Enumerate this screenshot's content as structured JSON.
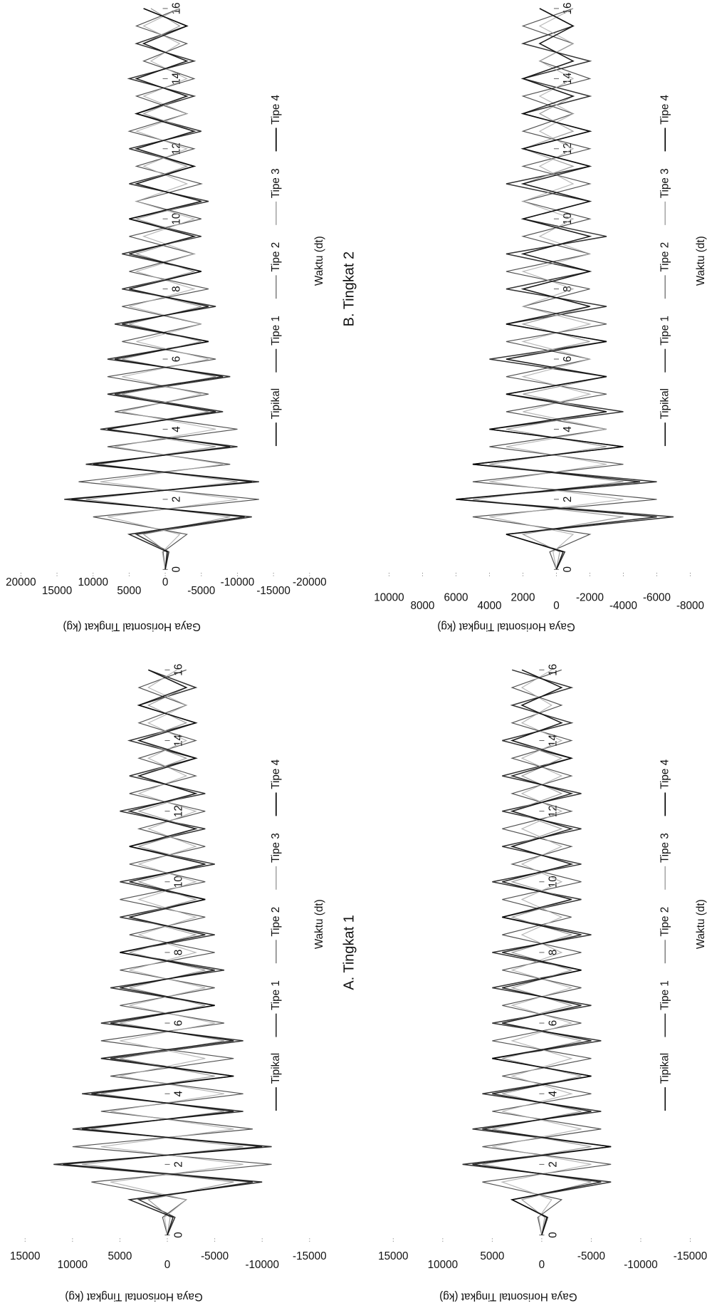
{
  "chart_data": [
    {
      "type": "line",
      "title": "A. Tingkat 1",
      "x_label": "Waktu (dt)",
      "y_label": "Gaya Horisontal Tingkat (kg)",
      "x": [
        0,
        0.5,
        1,
        1.5,
        2,
        2.5,
        3,
        3.5,
        4,
        4.5,
        5,
        5.5,
        6,
        6.5,
        7,
        7.5,
        8,
        8.5,
        9,
        9.5,
        10,
        10.5,
        11,
        11.5,
        12,
        12.5,
        13,
        13.5,
        14,
        14.5,
        15,
        15.5,
        16
      ],
      "xlim": [
        0,
        16
      ],
      "xticks": [
        0,
        2,
        4,
        6,
        8,
        10,
        12,
        14,
        16
      ],
      "ylim": [
        -15000,
        15000
      ],
      "yticks": [
        15000,
        10000,
        5000,
        0,
        -5000,
        -10000,
        -15000
      ],
      "series": [
        {
          "name": "Tipikal",
          "color": "#111111",
          "values": [
            0,
            -800,
            3000,
            -9000,
            12000,
            -11000,
            10000,
            -8000,
            9000,
            -7000,
            6000,
            -8000,
            7000,
            -5000,
            6000,
            -6000,
            5000,
            -5000,
            5000,
            -4000,
            5000,
            -5000,
            4000,
            -4000,
            5000,
            -4000,
            4000,
            -3000,
            4000,
            -3000,
            3000,
            -3000,
            2000
          ]
        },
        {
          "name": "Tipe 1",
          "color": "#333333",
          "values": [
            0,
            500,
            -2000,
            8000,
            -11000,
            10000,
            -9000,
            7000,
            -8000,
            6000,
            -7000,
            7000,
            -6000,
            5000,
            -5000,
            5000,
            -5000,
            4000,
            -4000,
            5000,
            -4000,
            4000,
            -4000,
            3000,
            -4000,
            4000,
            -3000,
            3000,
            -3000,
            3000,
            -2000,
            3000,
            -2000
          ]
        },
        {
          "name": "Tipe 2",
          "color": "#888888",
          "values": [
            0,
            -300,
            2000,
            -7000,
            9000,
            -8000,
            8000,
            -6000,
            7000,
            -5000,
            5000,
            -6000,
            5000,
            -4000,
            4000,
            -4000,
            4000,
            -3000,
            4000,
            -3000,
            3000,
            -4000,
            3000,
            -3000,
            3000,
            -3000,
            3000,
            -2000,
            3000,
            -2000,
            2000,
            -2000,
            2000
          ]
        },
        {
          "name": "Tipe 3",
          "color": "#aaaaaa",
          "values": [
            0,
            300,
            -2000,
            6000,
            -8000,
            7000,
            -7000,
            6000,
            -6000,
            5000,
            -4000,
            5000,
            -5000,
            4000,
            -4000,
            4000,
            -3000,
            3000,
            -3000,
            3000,
            -3000,
            3000,
            -3000,
            2000,
            -3000,
            3000,
            -2000,
            2000,
            -2000,
            2000,
            -2000,
            2000,
            -1000
          ]
        },
        {
          "name": "Tipe 4",
          "color": "#000000",
          "values": [
            0,
            -600,
            4000,
            -10000,
            11000,
            -10000,
            9000,
            -7000,
            8000,
            -7000,
            7000,
            -7000,
            6000,
            -5000,
            5000,
            -5000,
            5000,
            -4000,
            4000,
            -4000,
            4000,
            -4000,
            4000,
            -3000,
            4000,
            -3000,
            3000,
            -3000,
            3000,
            -3000,
            3000,
            -2000,
            2000
          ]
        }
      ]
    },
    {
      "type": "line",
      "title": "B. Tingkat 2",
      "x_label": "Waktu (dt)",
      "y_label": "Gaya Horisontal Tingkat (kg)",
      "x": [
        0,
        0.5,
        1,
        1.5,
        2,
        2.5,
        3,
        3.5,
        4,
        4.5,
        5,
        5.5,
        6,
        6.5,
        7,
        7.5,
        8,
        8.5,
        9,
        9.5,
        10,
        10.5,
        11,
        11.5,
        12,
        12.5,
        13,
        13.5,
        14,
        14.5,
        15,
        15.5,
        16
      ],
      "xlim": [
        0,
        16
      ],
      "xticks": [
        0,
        2,
        4,
        6,
        8,
        10,
        12,
        14,
        16
      ],
      "ylim": [
        -20000,
        20000
      ],
      "yticks": [
        20000,
        15000,
        10000,
        5000,
        0,
        -5000,
        -10000,
        -15000,
        -20000
      ],
      "series": [
        {
          "name": "Tipikal",
          "color": "#111111",
          "values": [
            0,
            -500,
            4000,
            -12000,
            14000,
            -13000,
            11000,
            -10000,
            9000,
            -8000,
            7000,
            -9000,
            8000,
            -6000,
            7000,
            -7000,
            6000,
            -5000,
            6000,
            -5000,
            5000,
            -6000,
            5000,
            -4000,
            5000,
            -5000,
            4000,
            -4000,
            5000,
            -4000,
            4000,
            -3000,
            3000
          ]
        },
        {
          "name": "Tipe 1",
          "color": "#333333",
          "values": [
            0,
            300,
            -3000,
            10000,
            -13000,
            12000,
            -9000,
            8000,
            -10000,
            7000,
            -6000,
            8000,
            -7000,
            6000,
            -5000,
            6000,
            -6000,
            5000,
            -4000,
            5000,
            -5000,
            4000,
            -5000,
            4000,
            -4000,
            5000,
            -3000,
            4000,
            -4000,
            3000,
            -3000,
            4000,
            -2000
          ]
        },
        {
          "name": "Tipe 2",
          "color": "#888888",
          "values": [
            0,
            -200,
            3000,
            -9000,
            11000,
            -10000,
            9000,
            -7000,
            8000,
            -6000,
            6000,
            -7000,
            6000,
            -5000,
            5000,
            -5000,
            5000,
            -4000,
            4000,
            -4000,
            4000,
            -5000,
            4000,
            -3000,
            4000,
            -4000,
            3000,
            -3000,
            4000,
            -3000,
            3000,
            -2000,
            2000
          ]
        },
        {
          "name": "Tipe 3",
          "color": "#aaaaaa",
          "values": [
            0,
            400,
            -2000,
            8000,
            -10000,
            9000,
            -8000,
            7000,
            -7000,
            6000,
            -5000,
            6000,
            -6000,
            4000,
            -5000,
            5000,
            -4000,
            4000,
            -4000,
            3000,
            -4000,
            4000,
            -3000,
            3000,
            -3000,
            4000,
            -3000,
            3000,
            -3000,
            2000,
            -2000,
            3000,
            -2000
          ]
        },
        {
          "name": "Tipe 4",
          "color": "#000000",
          "values": [
            0,
            -300,
            5000,
            -11000,
            13000,
            -12000,
            10000,
            -9000,
            8000,
            -7000,
            8000,
            -8000,
            7000,
            -6000,
            6000,
            -6000,
            5000,
            -5000,
            5000,
            -4000,
            5000,
            -5000,
            4000,
            -4000,
            4000,
            -4000,
            4000,
            -3000,
            4000,
            -3000,
            3000,
            -3000,
            3000
          ]
        }
      ]
    },
    {
      "type": "line",
      "x_label": "Waktu (dt)",
      "y_label": "Gaya Horisontal Tingkat (kg)",
      "x": [
        0,
        0.5,
        1,
        1.5,
        2,
        2.5,
        3,
        3.5,
        4,
        4.5,
        5,
        5.5,
        6,
        6.5,
        7,
        7.5,
        8,
        8.5,
        9,
        9.5,
        10,
        10.5,
        11,
        11.5,
        12,
        12.5,
        13,
        13.5,
        14,
        14.5,
        15,
        15.5,
        16
      ],
      "xlim": [
        0,
        16
      ],
      "xticks": [
        0,
        2,
        4,
        6,
        8,
        10,
        12,
        14,
        16
      ],
      "ylim": [
        -8000,
        10000
      ],
      "yticks": [
        10000,
        8000,
        6000,
        4000,
        2000,
        0,
        -2000,
        -4000,
        -6000,
        -8000
      ],
      "series": [
        {
          "name": "Tipikal",
          "color": "#111111",
          "values": [
            0,
            -500,
            3000,
            -7000,
            6000,
            -6000,
            5000,
            -4000,
            4000,
            -4000,
            3000,
            -3000,
            4000,
            -3000,
            3000,
            -3000,
            3000,
            -2000,
            3000,
            -3000,
            2000,
            -2000,
            3000,
            -2000,
            2000,
            -2000,
            2000,
            -2000,
            2000,
            -2000,
            2000,
            -1000,
            1000
          ]
        },
        {
          "name": "Tipe 1",
          "color": "#333333",
          "values": [
            0,
            400,
            -2000,
            5000,
            -6000,
            5000,
            -4000,
            4000,
            -3000,
            3000,
            -3000,
            3000,
            -2000,
            3000,
            -3000,
            2000,
            -2000,
            3000,
            -2000,
            2000,
            -2000,
            2000,
            -2000,
            2000,
            -2000,
            2000,
            -1000,
            2000,
            -2000,
            1000,
            -1000,
            2000,
            -1000
          ]
        },
        {
          "name": "Tipe 2",
          "color": "#888888",
          "values": [
            0,
            -200,
            2000,
            -4000,
            5000,
            -4000,
            4000,
            -3000,
            3000,
            -3000,
            2000,
            -3000,
            3000,
            -2000,
            2000,
            -2000,
            2000,
            -2000,
            2000,
            -2000,
            2000,
            -2000,
            2000,
            -1000,
            2000,
            -1000,
            1000,
            -1000,
            2000,
            -1000,
            1000,
            -1000,
            1000
          ]
        },
        {
          "name": "Tipe 3",
          "color": "#aaaaaa",
          "values": [
            0,
            200,
            -1000,
            4000,
            -4000,
            4000,
            -3000,
            3000,
            -3000,
            2000,
            -2000,
            2000,
            -2000,
            2000,
            -2000,
            2000,
            -1000,
            2000,
            -2000,
            1000,
            -1000,
            2000,
            -1000,
            1000,
            -1000,
            1000,
            -1000,
            1000,
            -1000,
            1000,
            -1000,
            1000,
            -1000
          ]
        },
        {
          "name": "Tipe 4",
          "color": "#000000",
          "values": [
            0,
            -400,
            3000,
            -6000,
            6000,
            -5000,
            5000,
            -4000,
            4000,
            -3000,
            3000,
            -3000,
            3000,
            -3000,
            3000,
            -2000,
            2000,
            -2000,
            2000,
            -2000,
            2000,
            -2000,
            2000,
            -2000,
            2000,
            -2000,
            2000,
            -1000,
            2000,
            -1000,
            1000,
            -1000,
            1000
          ]
        }
      ]
    },
    {
      "type": "line",
      "x_label": "Waktu (dt)",
      "y_label": "Gaya Horisontal Tingkat (kg)",
      "x": [
        0,
        0.5,
        1,
        1.5,
        2,
        2.5,
        3,
        3.5,
        4,
        4.5,
        5,
        5.5,
        6,
        6.5,
        7,
        7.5,
        8,
        8.5,
        9,
        9.5,
        10,
        10.5,
        11,
        11.5,
        12,
        12.5,
        13,
        13.5,
        14,
        14.5,
        15,
        15.5,
        16
      ],
      "xlim": [
        0,
        16
      ],
      "xticks": [
        0,
        2,
        4,
        6,
        8,
        10,
        12,
        14,
        16
      ],
      "ylim": [
        -15000,
        15000
      ],
      "yticks": [
        15000,
        10000,
        5000,
        0,
        -5000,
        -10000,
        -15000
      ],
      "series": [
        {
          "name": "Tipikal",
          "color": "#111111",
          "values": [
            0,
            -600,
            3000,
            -7000,
            8000,
            -7000,
            7000,
            -6000,
            6000,
            -5000,
            5000,
            -6000,
            5000,
            -5000,
            5000,
            -4000,
            5000,
            -5000,
            4000,
            -4000,
            5000,
            -4000,
            4000,
            -4000,
            4000,
            -4000,
            4000,
            -3000,
            4000,
            -3000,
            3000,
            -3000,
            3000
          ]
        },
        {
          "name": "Tipe 1",
          "color": "#333333",
          "values": [
            0,
            400,
            -2000,
            6000,
            -7000,
            6000,
            -6000,
            5000,
            -5000,
            4000,
            -5000,
            5000,
            -4000,
            4000,
            -4000,
            4000,
            -4000,
            4000,
            -3000,
            4000,
            -4000,
            3000,
            -3000,
            4000,
            -3000,
            3000,
            -3000,
            3000,
            -3000,
            3000,
            -2000,
            3000,
            -2000
          ]
        },
        {
          "name": "Tipe 2",
          "color": "#888888",
          "values": [
            0,
            -300,
            2000,
            -5000,
            6000,
            -5000,
            5000,
            -4000,
            4000,
            -4000,
            4000,
            -4000,
            4000,
            -3000,
            3000,
            -3000,
            3000,
            -3000,
            3000,
            -3000,
            3000,
            -3000,
            3000,
            -2000,
            3000,
            -2000,
            2000,
            -2000,
            3000,
            -2000,
            2000,
            -2000,
            2000
          ]
        },
        {
          "name": "Tipe 3",
          "color": "#aaaaaa",
          "values": [
            0,
            300,
            -1000,
            4000,
            -5000,
            5000,
            -4000,
            4000,
            -3000,
            3000,
            -3000,
            3000,
            -3000,
            3000,
            -3000,
            3000,
            -2000,
            2000,
            -2000,
            2000,
            -2000,
            2000,
            -2000,
            2000,
            -2000,
            2000,
            -2000,
            2000,
            -2000,
            2000,
            -1000,
            2000,
            -1000
          ]
        },
        {
          "name": "Tipe 4",
          "color": "#000000",
          "values": [
            0,
            -500,
            3000,
            -6000,
            7000,
            -7000,
            6000,
            -5000,
            5000,
            -5000,
            5000,
            -5000,
            4000,
            -4000,
            4000,
            -4000,
            4000,
            -4000,
            4000,
            -3000,
            4000,
            -3000,
            3000,
            -3000,
            3000,
            -3000,
            3000,
            -3000,
            3000,
            -2000,
            2000,
            -2000,
            2000
          ]
        }
      ]
    }
  ]
}
